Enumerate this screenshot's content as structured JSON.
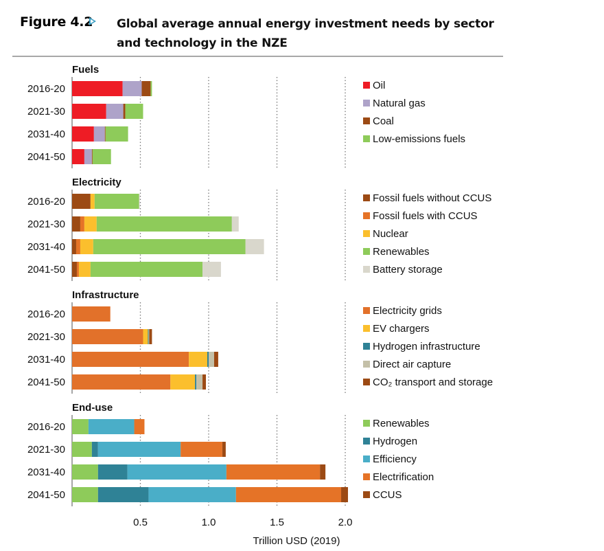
{
  "figure": {
    "label": "Figure 4.2",
    "title": "Global average annual energy investment needs by sector and technology in the NZE",
    "accent_color": "#3a9fc4"
  },
  "chart_data": {
    "type": "bar",
    "orientation": "horizontal",
    "stacked": true,
    "xlabel": "Trillion USD (2019)",
    "xlim": [
      0,
      2.1
    ],
    "xticks": [
      0.5,
      1.0,
      1.5,
      2.0
    ],
    "xtick_labels": [
      "0.5",
      "1.0",
      "1.5",
      "2.0"
    ],
    "grid": "vertical-dotted",
    "legend": "right",
    "categories": [
      "2016-20",
      "2021-30",
      "2031-40",
      "2041-50"
    ],
    "panels": [
      {
        "title": "Fuels",
        "series": [
          {
            "name": "Oil",
            "color": "#ee1c25",
            "values": [
              0.37,
              0.25,
              0.16,
              0.09
            ]
          },
          {
            "name": "Natural gas",
            "color": "#aea3c9",
            "values": [
              0.14,
              0.125,
              0.08,
              0.055
            ]
          },
          {
            "name": "Coal",
            "color": "#9c4a14",
            "values": [
              0.065,
              0.015,
              0.005,
              0.005
            ]
          },
          {
            "name": "Low-emissions fuels",
            "color": "#8ecb5a",
            "values": [
              0.01,
              0.13,
              0.165,
              0.135
            ]
          }
        ]
      },
      {
        "title": "Electricity",
        "series": [
          {
            "name": "Fossil fuels without CCUS",
            "color": "#9c4a14",
            "values": [
              0.135,
              0.06,
              0.03,
              0.035
            ]
          },
          {
            "name": "Fossil fuels with CCUS",
            "color": "#e57327",
            "values": [
              0.0,
              0.03,
              0.03,
              0.015
            ]
          },
          {
            "name": "Nuclear",
            "color": "#fbbf2d",
            "values": [
              0.03,
              0.09,
              0.095,
              0.085
            ]
          },
          {
            "name": "Renewables",
            "color": "#8ecb5a",
            "values": [
              0.325,
              0.99,
              1.115,
              0.82
            ]
          },
          {
            "name": "Battery storage",
            "color": "#d9d7cc",
            "values": [
              0.005,
              0.05,
              0.135,
              0.135
            ]
          }
        ]
      },
      {
        "title": "Infrastructure",
        "series": [
          {
            "name": "Electricity grids",
            "color": "#e2712a",
            "values": [
              0.28,
              0.52,
              0.855,
              0.72
            ]
          },
          {
            "name": "EV chargers",
            "color": "#fbbf2d",
            "values": [
              0.0,
              0.035,
              0.135,
              0.18
            ]
          },
          {
            "name": "Hydrogen infrastructure",
            "color": "#2f8296",
            "values": [
              0.0,
              0.005,
              0.01,
              0.01
            ]
          },
          {
            "name": "Direct air capture",
            "color": "#c4c0a8",
            "values": [
              0.0,
              0.005,
              0.04,
              0.045
            ]
          },
          {
            "name": "CO₂ transport and storage",
            "color": "#9c4a14",
            "values": [
              0.0,
              0.02,
              0.03,
              0.025
            ]
          }
        ]
      },
      {
        "title": "End-use",
        "series": [
          {
            "name": "Renewables",
            "color": "#8ecb5a",
            "values": [
              0.12,
              0.145,
              0.19,
              0.19
            ]
          },
          {
            "name": "Hydrogen",
            "color": "#2f8296",
            "values": [
              0.0,
              0.045,
              0.215,
              0.37
            ]
          },
          {
            "name": "Efficiency",
            "color": "#4aaec8",
            "values": [
              0.335,
              0.605,
              0.725,
              0.64
            ]
          },
          {
            "name": "Electrification",
            "color": "#e57327",
            "values": [
              0.075,
              0.305,
              0.685,
              0.77
            ]
          },
          {
            "name": "CCUS",
            "color": "#9c4a14",
            "values": [
              0.0,
              0.025,
              0.04,
              0.05
            ]
          }
        ]
      }
    ]
  }
}
